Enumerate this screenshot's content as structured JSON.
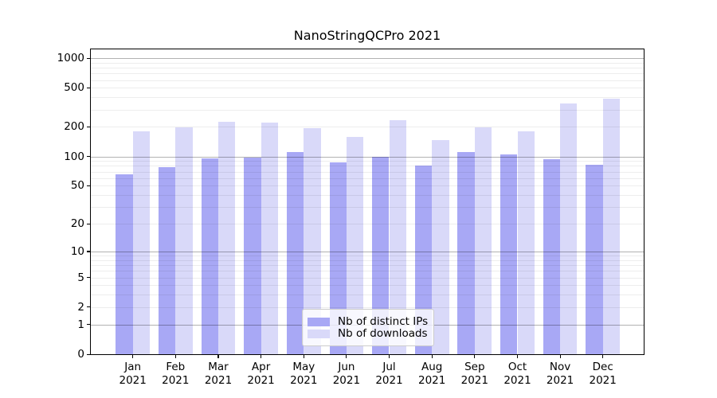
{
  "title": "NanoStringQCPro 2021",
  "chart_data": {
    "type": "bar",
    "title": "NanoStringQCPro 2021",
    "yscale": "log1p",
    "ylim": [
      0,
      1250
    ],
    "y_ticks": [
      1000,
      500,
      200,
      100,
      50,
      20,
      10,
      5,
      2,
      1,
      0
    ],
    "grid": "horizontal, major at powers of 10, faint log minors",
    "legend_position": "lower center",
    "categories": [
      "Jan\n2021",
      "Feb\n2021",
      "Mar\n2021",
      "Apr\n2021",
      "May\n2021",
      "Jun\n2021",
      "Jul\n2021",
      "Aug\n2021",
      "Sep\n2021",
      "Oct\n2021",
      "Nov\n2021",
      "Dec\n2021"
    ],
    "series": [
      {
        "name": "Nb of distinct IPs",
        "color": "#a8a8f5",
        "values": [
          66,
          77,
          96,
          98,
          110,
          87,
          100,
          80,
          111,
          104,
          93,
          82
        ]
      },
      {
        "name": "Nb of downloads",
        "color": "#d9d9f9",
        "values": [
          182,
          197,
          224,
          221,
          194,
          159,
          235,
          147,
          198,
          180,
          349,
          390
        ]
      }
    ]
  },
  "colors": {
    "major_grid": "#b3b3b3",
    "minor_grid": "#ededed",
    "axis": "#000000",
    "background": "#ffffff",
    "legend_border": "#cccccc"
  }
}
